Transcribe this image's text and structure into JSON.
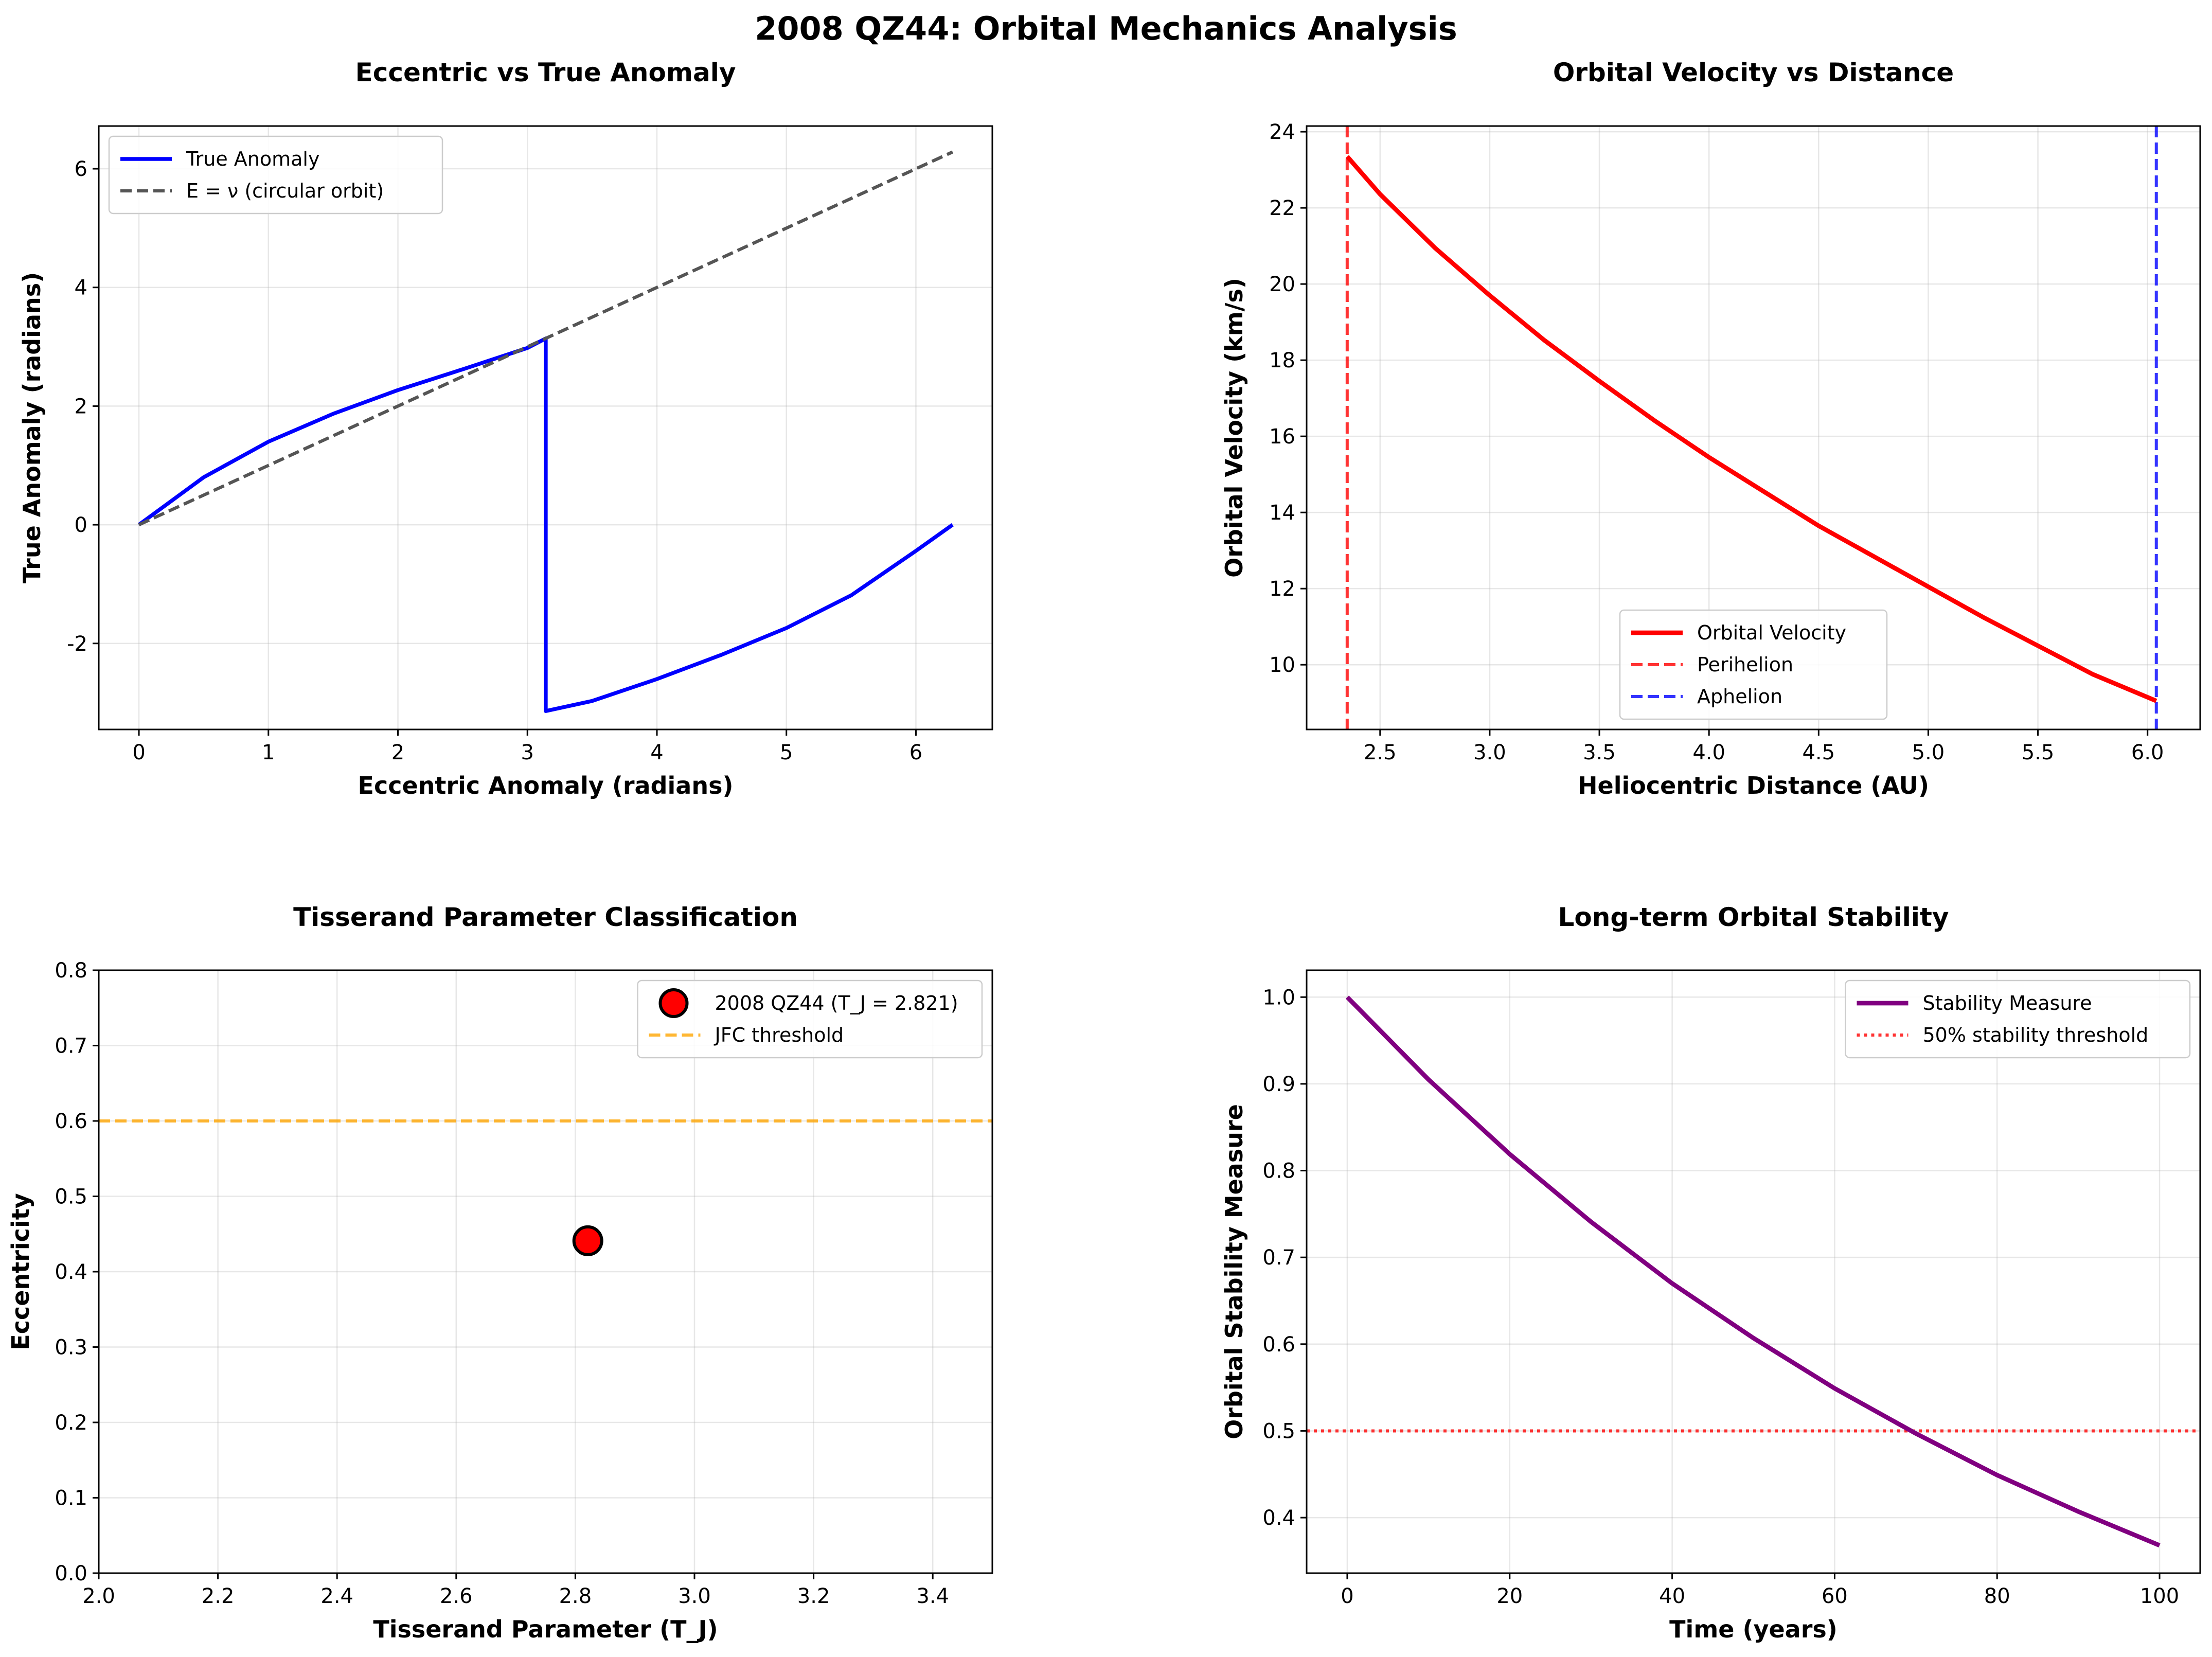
{
  "figure": {
    "suptitle": "2008 QZ44: Orbital Mechanics Analysis"
  },
  "chart_data": [
    {
      "id": "anomaly",
      "type": "line",
      "title": "Eccentric vs True Anomaly",
      "xlabel": "Eccentric Anomaly (radians)",
      "ylabel": "True Anomaly (radians)",
      "xlim": [
        -0.31,
        6.59
      ],
      "ylim": [
        -3.45,
        6.72
      ],
      "xticks": [
        0,
        1,
        2,
        3,
        4,
        5,
        6
      ],
      "xtick_labels": [
        "0",
        "1",
        "2",
        "3",
        "4",
        "5",
        "6"
      ],
      "yticks": [
        -2,
        0,
        2,
        4,
        6
      ],
      "ytick_labels": [
        "-2",
        "0",
        "2",
        "4",
        "6"
      ],
      "grid": true,
      "legend_loc": "upper left",
      "series": [
        {
          "name": "True Anomaly",
          "color": "#0000ff",
          "style": "solid",
          "width": 3,
          "x": [
            0,
            0.5,
            1.0,
            1.5,
            2.0,
            2.5,
            3.0,
            3.1416,
            3.1416,
            3.5,
            4.0,
            4.5,
            5.0,
            5.5,
            6.0,
            6.2832
          ],
          "y": [
            0,
            0.8,
            1.4,
            1.87,
            2.27,
            2.62,
            2.98,
            3.14,
            -3.14,
            -2.97,
            -2.6,
            -2.19,
            -1.74,
            -1.19,
            -0.44,
            0.0
          ]
        },
        {
          "name": "E = ν (circular orbit)",
          "color": "#555555",
          "style": "dashed",
          "width": 2.5,
          "x": [
            0,
            6.2832
          ],
          "y": [
            0,
            6.2832
          ]
        }
      ]
    },
    {
      "id": "velocity",
      "type": "line",
      "title": "Orbital Velocity vs Distance",
      "xlabel": "Heliocentric Distance (AU)",
      "ylabel": "Orbital Velocity (km/s)",
      "xlim": [
        2.165,
        6.24
      ],
      "ylim": [
        8.3,
        24.15
      ],
      "xticks": [
        2.5,
        3.0,
        3.5,
        4.0,
        4.5,
        5.0,
        5.5,
        6.0
      ],
      "xtick_labels": [
        "2.5",
        "3.0",
        "3.5",
        "4.0",
        "4.5",
        "5.0",
        "5.5",
        "6.0"
      ],
      "yticks": [
        10,
        12,
        14,
        16,
        18,
        20,
        22,
        24
      ],
      "ytick_labels": [
        "10",
        "12",
        "14",
        "16",
        "18",
        "20",
        "22",
        "24"
      ],
      "grid": true,
      "legend_loc": "lower center",
      "series": [
        {
          "name": "Orbital Velocity",
          "color": "#ff0000",
          "style": "solid",
          "width": 3.5,
          "x": [
            2.35,
            2.5,
            2.75,
            3.0,
            3.25,
            3.5,
            3.75,
            4.0,
            4.25,
            4.5,
            4.75,
            5.0,
            5.25,
            5.5,
            5.75,
            6.04
          ],
          "y": [
            23.35,
            22.36,
            20.95,
            19.7,
            18.52,
            17.45,
            16.42,
            15.45,
            14.55,
            13.65,
            12.85,
            12.05,
            11.25,
            10.5,
            9.75,
            9.05
          ]
        }
      ],
      "vlines": [
        {
          "name": "Perihelion",
          "x": 2.35,
          "color": "#ff0000",
          "style": "dashed",
          "opacity": 0.8
        },
        {
          "name": "Aphelion",
          "x": 6.04,
          "color": "#0000ff",
          "style": "dashed",
          "opacity": 0.8
        }
      ]
    },
    {
      "id": "tisserand",
      "type": "scatter",
      "title": "Tisserand Parameter Classification",
      "xlabel": "Tisserand Parameter (T_J)",
      "ylabel": "Eccentricity",
      "xlim": [
        2.0,
        3.5
      ],
      "ylim": [
        0.0,
        0.8
      ],
      "xticks": [
        2.0,
        2.2,
        2.4,
        2.6,
        2.8,
        3.0,
        3.2,
        3.4
      ],
      "xtick_labels": [
        "2.0",
        "2.2",
        "2.4",
        "2.6",
        "2.8",
        "3.0",
        "3.2",
        "3.4"
      ],
      "yticks": [
        0.0,
        0.1,
        0.2,
        0.3,
        0.4,
        0.5,
        0.6,
        0.7,
        0.8
      ],
      "ytick_labels": [
        "0.0",
        "0.1",
        "0.2",
        "0.3",
        "0.4",
        "0.5",
        "0.6",
        "0.7",
        "0.8"
      ],
      "grid": true,
      "legend_loc": "upper right",
      "points": [
        {
          "name": "2008 QZ44 (T_J = 2.821)",
          "x": 2.821,
          "y": 0.441,
          "color": "#ff0000",
          "edge": "#000000"
        }
      ],
      "hlines": [
        {
          "name": "JFC threshold",
          "y": 0.6,
          "color": "#ffa500",
          "style": "dashed",
          "opacity": 0.8
        }
      ]
    },
    {
      "id": "stability",
      "type": "line",
      "title": "Long-term Orbital Stability",
      "xlabel": "Time (years)",
      "ylabel": "Orbital Stability Measure",
      "xlim": [
        -5,
        105
      ],
      "ylim": [
        0.336,
        1.031
      ],
      "xticks": [
        0,
        20,
        40,
        60,
        80,
        100
      ],
      "xtick_labels": [
        "0",
        "20",
        "40",
        "60",
        "80",
        "100"
      ],
      "yticks": [
        0.4,
        0.5,
        0.6,
        0.7,
        0.8,
        0.9,
        1.0
      ],
      "ytick_labels": [
        "0.4",
        "0.5",
        "0.6",
        "0.7",
        "0.8",
        "0.9",
        "1.0"
      ],
      "grid": true,
      "legend_loc": "upper right",
      "series": [
        {
          "name": "Stability Measure",
          "color": "#800080",
          "style": "solid",
          "width": 3.5,
          "x": [
            0,
            10,
            20,
            30,
            40,
            50,
            60,
            70,
            80,
            90,
            100
          ],
          "y": [
            1.0,
            0.905,
            0.819,
            0.741,
            0.67,
            0.607,
            0.549,
            0.497,
            0.449,
            0.407,
            0.368
          ]
        }
      ],
      "hlines": [
        {
          "name": "50% stability threshold",
          "y": 0.5,
          "color": "#ff0000",
          "style": "dotted",
          "opacity": 0.8
        }
      ]
    }
  ]
}
